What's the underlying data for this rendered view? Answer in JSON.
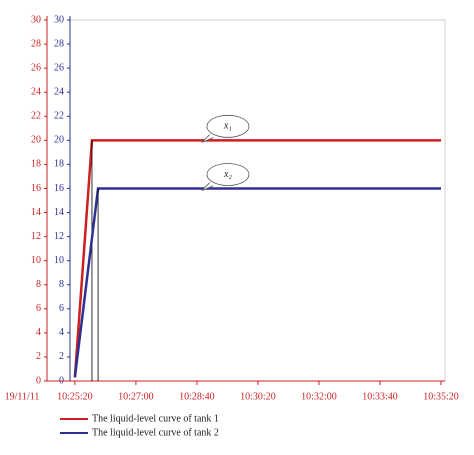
{
  "chart_data": {
    "type": "line",
    "date_label": "19/11/11",
    "x": [
      0,
      28,
      600
    ],
    "xlim": [
      -8,
      600
    ],
    "xticks": [
      {
        "value": 0,
        "label": "10:25:20"
      },
      {
        "value": 100,
        "label": "10:27:00"
      },
      {
        "value": 200,
        "label": "10:28:40"
      },
      {
        "value": 300,
        "label": "10:30:20"
      },
      {
        "value": 400,
        "label": "10:32:00"
      },
      {
        "value": 500,
        "label": "10:33:40"
      },
      {
        "value": 600,
        "label": "10:35:20"
      }
    ],
    "ylim": [
      0,
      30
    ],
    "yticks": [
      0,
      2,
      4,
      6,
      8,
      10,
      12,
      14,
      16,
      18,
      20,
      22,
      24,
      26,
      28,
      30
    ],
    "y2lim": [
      0,
      30
    ],
    "y2ticks": [
      0,
      2,
      4,
      6,
      8,
      10,
      12,
      14,
      16,
      18,
      20,
      22,
      24,
      26,
      28,
      30
    ],
    "series": [
      {
        "name": "The liquid-level curve of tank 1",
        "color": "#cc1f1f",
        "x": [
          0,
          28,
          600
        ],
        "values": [
          0.3,
          20,
          20
        ]
      },
      {
        "name": "The liquid-level curve of tank 2",
        "color": "#2e3192",
        "axis": "y2",
        "x": [
          0,
          38,
          600
        ],
        "values": [
          0.3,
          16,
          16
        ]
      }
    ],
    "annotations": [
      {
        "text": "x₁",
        "x": 300,
        "y": 20
      },
      {
        "text": "x₂",
        "x": 300,
        "y": 16
      }
    ]
  }
}
